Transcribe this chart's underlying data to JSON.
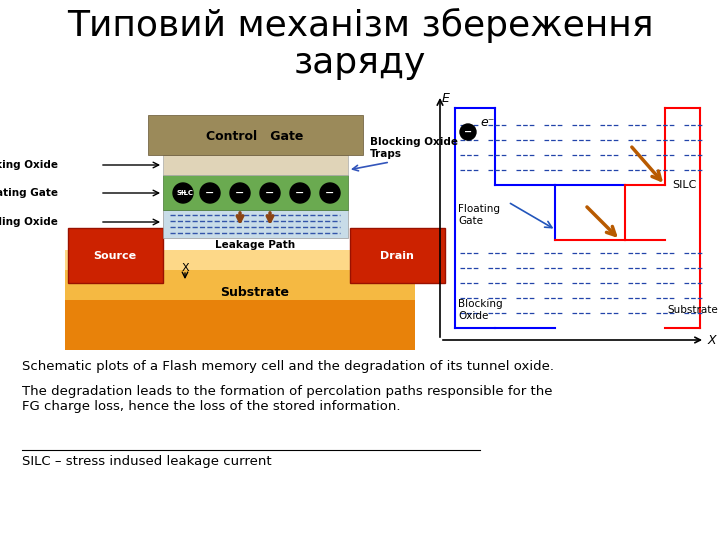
{
  "title_line1": "Типовий механізм збереження",
  "title_line2": "заряду",
  "title_fontsize": 26,
  "body_text1": "Schematic plots of a Flash memory cell and the degradation of its tunnel oxide.",
  "body_text2": "The degradation leads to the formation of percolation paths responsible for the\nFG charge loss, hence the loss of the stored information.",
  "footer_text": "SILC – stress indused leakage current",
  "bg_color": "#ffffff",
  "text_color": "#000000",
  "body_fontsize": 9.5,
  "footer_fontsize": 9.5
}
